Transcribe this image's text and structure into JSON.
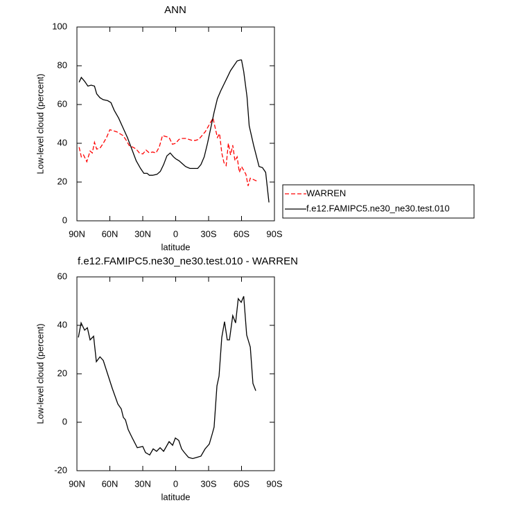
{
  "chart_data": [
    {
      "type": "line",
      "title": "ANN",
      "xlabel": "latitude",
      "ylabel": "Low-level cloud (percent)",
      "xlim": [
        90,
        -90
      ],
      "ylim": [
        0,
        100
      ],
      "xticks": [
        {
          "value": 90,
          "label": "90N"
        },
        {
          "value": 60,
          "label": "60N"
        },
        {
          "value": 30,
          "label": "30N"
        },
        0,
        {
          "value": -30,
          "label": "30S"
        },
        {
          "value": -60,
          "label": "60S"
        },
        {
          "value": -90,
          "label": "90S"
        }
      ],
      "yticks": [
        0,
        20,
        40,
        60,
        80,
        100
      ],
      "legend": "outside-right",
      "series": [
        {
          "name": "WARREN",
          "color": "#ff0000",
          "dash": true,
          "x": [
            88,
            86,
            84,
            81,
            78,
            76,
            74,
            72,
            69,
            66,
            63,
            60,
            57,
            54,
            51,
            48,
            45,
            42,
            39,
            36,
            33,
            30,
            27,
            24,
            21,
            18,
            15,
            12,
            9,
            6,
            3,
            0,
            -3,
            -6,
            -9,
            -12,
            -15,
            -18,
            -21,
            -24,
            -27,
            -31,
            -34,
            -36,
            -38,
            -40,
            -42,
            -44,
            -46,
            -48,
            -50,
            -52,
            -54,
            -56,
            -58,
            -60,
            -64,
            -66,
            -68,
            -72,
            -74
          ],
          "values": [
            38,
            33,
            34,
            30.5,
            36,
            35,
            40.5,
            37,
            37.5,
            40,
            43,
            47,
            46.5,
            46,
            45,
            44,
            41.5,
            38.5,
            38,
            37,
            35,
            34.5,
            36.5,
            35,
            35.5,
            35,
            38,
            44,
            43.5,
            43,
            39.5,
            40,
            42,
            42.5,
            42.5,
            42,
            41.5,
            41.5,
            42,
            44,
            46,
            50,
            53,
            48,
            43,
            45,
            35,
            30,
            28.5,
            40,
            34,
            39,
            31,
            33,
            25,
            28,
            24,
            18,
            22,
            21,
            20.5
          ]
        },
        {
          "name": "f.e12.FAMIPC5.ne30_ne30.test.010",
          "color": "#000000",
          "dash": false,
          "x": [
            88,
            86,
            83,
            80,
            77,
            74,
            72,
            69,
            66,
            62,
            59,
            56,
            52,
            48,
            44,
            40,
            36,
            32,
            29,
            26,
            24,
            21,
            17,
            14,
            11,
            8,
            5,
            2,
            0,
            -3,
            -6,
            -9,
            -13,
            -17,
            -20,
            -23,
            -26,
            -29,
            -32,
            -35,
            -38,
            -41,
            -44,
            -47,
            -50,
            -53,
            -56,
            -59,
            -60,
            -62,
            -65,
            -67,
            -71,
            -76,
            -79,
            -82,
            -85
          ],
          "values": [
            71.5,
            74,
            72,
            69.5,
            70,
            69.5,
            65.5,
            63.5,
            62.5,
            62,
            61,
            57,
            53,
            48,
            43,
            37,
            31,
            27,
            24.5,
            24.5,
            23.5,
            23.5,
            24,
            25.5,
            29,
            33.5,
            35,
            33,
            32,
            31,
            29.5,
            28,
            27,
            27,
            27,
            29,
            33,
            40,
            48,
            56,
            63,
            67,
            70.5,
            74,
            77.5,
            80,
            82.5,
            83,
            83,
            77,
            64,
            49,
            39,
            28,
            27.5,
            25,
            9.5
          ]
        }
      ]
    },
    {
      "type": "line",
      "title": "f.e12.FAMIPC5.ne30_ne30.test.010 - WARREN",
      "xlabel": "latitude",
      "ylabel": "Low-level cloud (percent)",
      "xlim": [
        90,
        -90
      ],
      "ylim": [
        -20,
        60
      ],
      "xticks": [
        {
          "value": 90,
          "label": "90N"
        },
        {
          "value": 60,
          "label": "60N"
        },
        {
          "value": 30,
          "label": "30N"
        },
        0,
        {
          "value": -30,
          "label": "30S"
        },
        {
          "value": -60,
          "label": "60S"
        },
        {
          "value": -90,
          "label": "90S"
        }
      ],
      "yticks": [
        -20,
        0,
        20,
        40,
        60
      ],
      "series": [
        {
          "color": "#000000",
          "dash": false,
          "x": [
            88.7,
            86.2,
            83,
            80.5,
            78,
            74.8,
            72.3,
            69,
            66,
            62.8,
            57.8,
            52.7,
            49.6,
            47.7,
            45.8,
            43.3,
            40.1,
            35,
            30,
            27.5,
            23.7,
            20.5,
            17.4,
            14.2,
            11,
            8.5,
            6,
            2.8,
            0.3,
            -2.8,
            -5.4,
            -7.9,
            -11.7,
            -15.5,
            -19.3,
            -23,
            -26.8,
            -30.6,
            -33.2,
            -35,
            -37.6,
            -39.5,
            -42,
            -44.5,
            -47,
            -49,
            -52,
            -54.6,
            -57,
            -59.7,
            -62,
            -64.7,
            -68,
            -70.4,
            -73
          ],
          "values": [
            35,
            41,
            38,
            39,
            34,
            35.5,
            25,
            27,
            25.5,
            21,
            14,
            7.5,
            5.5,
            2,
            1,
            -3,
            -6,
            -10.5,
            -10,
            -12.5,
            -13.5,
            -11,
            -12,
            -10.5,
            -12,
            -10,
            -8,
            -9.5,
            -6.5,
            -7.5,
            -11,
            -12.5,
            -14.5,
            -15,
            -14.5,
            -14,
            -11,
            -9,
            -5,
            -2,
            15,
            19,
            35,
            41.5,
            34,
            34,
            44,
            41,
            51,
            49.5,
            52,
            36,
            31,
            16,
            13
          ]
        }
      ]
    }
  ]
}
